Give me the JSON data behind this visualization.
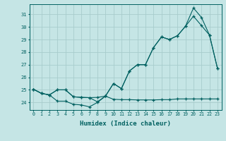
{
  "xlabel": "Humidex (Indice chaleur)",
  "bg_color": "#c5e5e5",
  "grid_color": "#a8cccc",
  "line_color": "#006060",
  "xlim": [
    -0.5,
    23.5
  ],
  "ylim": [
    23.4,
    31.8
  ],
  "yticks": [
    24,
    25,
    26,
    27,
    28,
    29,
    30,
    31
  ],
  "xticks": [
    0,
    1,
    2,
    3,
    4,
    5,
    6,
    7,
    8,
    9,
    10,
    11,
    12,
    13,
    14,
    15,
    16,
    17,
    18,
    19,
    20,
    21,
    22,
    23
  ],
  "line1_x": [
    0,
    1,
    2,
    3,
    4,
    5,
    6,
    7,
    8,
    9,
    10,
    11,
    12,
    13,
    14,
    15,
    16,
    17,
    18,
    19,
    20,
    21,
    22,
    23
  ],
  "line1_y": [
    25.05,
    24.72,
    24.6,
    24.1,
    24.1,
    23.85,
    23.8,
    23.65,
    24.0,
    24.5,
    25.5,
    25.1,
    26.5,
    27.0,
    27.0,
    28.35,
    29.2,
    29.0,
    29.3,
    30.05,
    31.5,
    30.75,
    29.35,
    26.7
  ],
  "line2_x": [
    0,
    1,
    2,
    3,
    4,
    5,
    6,
    7,
    8,
    9,
    10,
    11,
    12,
    13,
    14,
    15,
    16,
    17,
    18,
    19,
    20,
    21,
    22,
    23
  ],
  "line2_y": [
    25.05,
    24.72,
    24.6,
    25.0,
    25.0,
    24.45,
    24.4,
    24.38,
    24.4,
    24.5,
    25.5,
    25.1,
    26.5,
    27.0,
    27.0,
    28.35,
    29.2,
    29.0,
    29.3,
    30.05,
    30.85,
    30.1,
    29.35,
    26.7
  ],
  "line3_x": [
    0,
    1,
    2,
    3,
    4,
    5,
    6,
    7,
    8,
    9,
    10,
    11,
    12,
    13,
    14,
    15,
    16,
    17,
    18,
    19,
    20,
    21,
    22,
    23
  ],
  "line3_y": [
    25.05,
    24.72,
    24.6,
    25.0,
    25.0,
    24.45,
    24.4,
    24.38,
    24.05,
    24.5,
    24.25,
    24.22,
    24.22,
    24.2,
    24.2,
    24.2,
    24.22,
    24.22,
    24.28,
    24.28,
    24.28,
    24.28,
    24.28,
    24.28
  ]
}
